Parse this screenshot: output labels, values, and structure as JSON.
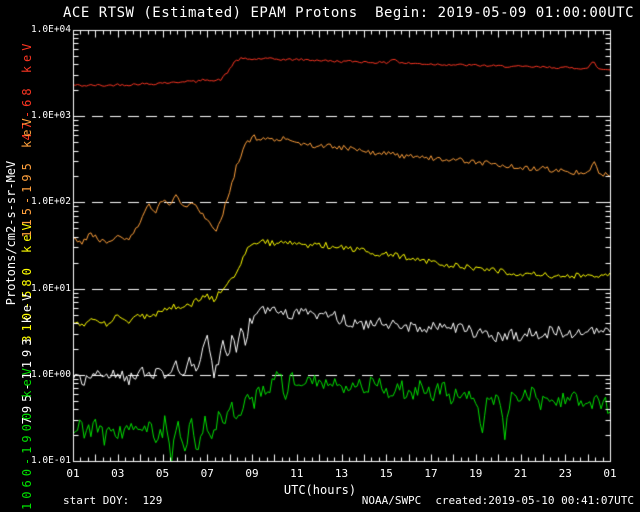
{
  "header": {
    "title": "ACE RTSW (Estimated) EPAM Protons",
    "begin_label": "Begin: 2019-05-09 01:00:00UTC"
  },
  "footer": {
    "start_doy": "start DOY:  129",
    "agency": "NOAA/SWPC",
    "created": "created:2019-05-10 00:41:07UTC"
  },
  "chart_data": {
    "type": "line",
    "title": "ACE RTSW (Estimated) EPAM Protons",
    "xlabel": "UTC(hours)",
    "ylabel": "Protons/cm2-s-sr-MeV",
    "background": "#000000",
    "axis_color": "#ffffff",
    "grid_style": "dashed-white",
    "y_scale": "log",
    "y_range": [
      0.1,
      10000
    ],
    "y_tick_values": [
      10000,
      1000,
      100,
      10,
      1,
      0.1
    ],
    "y_tick_labels": [
      "1.0E+04",
      "1.0E+03",
      "1.0E+02",
      "1.0E+01",
      "1.0E+00",
      "1.0E-01"
    ],
    "gridline_values": [
      1000,
      100,
      10,
      1
    ],
    "x_range_hours": [
      1,
      25
    ],
    "x_tick_hours": [
      1,
      3,
      5,
      7,
      9,
      11,
      13,
      15,
      17,
      19,
      21,
      23,
      25
    ],
    "x_tick_labels": [
      "01",
      "03",
      "05",
      "07",
      "09",
      "11",
      "13",
      "15",
      "17",
      "19",
      "21",
      "23",
      "01"
    ],
    "x_minor_tick_minutes": 20,
    "legend_position": "left-rotated",
    "sample_step_minutes": 6,
    "series": [
      {
        "name": "47-68 keV",
        "color": "#fb3522",
        "noise_log": 0.013,
        "anchors": [
          [
            1,
            2300
          ],
          [
            1.5,
            2260
          ],
          [
            2,
            2290
          ],
          [
            2.5,
            2260
          ],
          [
            3,
            2330
          ],
          [
            3.5,
            2310
          ],
          [
            4,
            2380
          ],
          [
            4.5,
            2360
          ],
          [
            5,
            2450
          ],
          [
            5.5,
            2440
          ],
          [
            6,
            2560
          ],
          [
            6.5,
            2510
          ],
          [
            7,
            2700
          ],
          [
            7.3,
            2560
          ],
          [
            7.6,
            2660
          ],
          [
            7.9,
            3200
          ],
          [
            8.2,
            4250
          ],
          [
            8.5,
            4650
          ],
          [
            9,
            4560
          ],
          [
            9.5,
            4660
          ],
          [
            10,
            4600
          ],
          [
            10.5,
            4520
          ],
          [
            11,
            4560
          ],
          [
            11.5,
            4490
          ],
          [
            12,
            4450
          ],
          [
            12.5,
            4360
          ],
          [
            13,
            4310
          ],
          [
            13.5,
            4330
          ],
          [
            14,
            4260
          ],
          [
            14.5,
            4210
          ],
          [
            15,
            4160
          ],
          [
            15.35,
            4680
          ],
          [
            15.6,
            4160
          ],
          [
            16,
            4110
          ],
          [
            16.5,
            4060
          ],
          [
            17,
            4020
          ],
          [
            17.5,
            3990
          ],
          [
            18,
            3950
          ],
          [
            18.5,
            3920
          ],
          [
            19,
            3890
          ],
          [
            19.5,
            3850
          ],
          [
            20,
            3810
          ],
          [
            20.5,
            3780
          ],
          [
            21,
            3750
          ],
          [
            21.5,
            3730
          ],
          [
            22,
            3700
          ],
          [
            22.5,
            3680
          ],
          [
            23,
            3650
          ],
          [
            23.5,
            3620
          ],
          [
            24,
            3600
          ],
          [
            24.25,
            4320
          ],
          [
            24.5,
            3520
          ],
          [
            25,
            3460
          ]
        ]
      },
      {
        "name": "115-195 keV",
        "color": "#ffa03c",
        "noise_log": 0.03,
        "anchors": [
          [
            1,
            40
          ],
          [
            1.4,
            34
          ],
          [
            1.8,
            44
          ],
          [
            2.2,
            36
          ],
          [
            2.6,
            33
          ],
          [
            3,
            40
          ],
          [
            3.4,
            36
          ],
          [
            3.8,
            48
          ],
          [
            4.1,
            70
          ],
          [
            4.4,
            96
          ],
          [
            4.7,
            76
          ],
          [
            5,
            106
          ],
          [
            5.3,
            88
          ],
          [
            5.6,
            116
          ],
          [
            6,
            86
          ],
          [
            6.4,
            100
          ],
          [
            6.8,
            72
          ],
          [
            7.1,
            60
          ],
          [
            7.4,
            46
          ],
          [
            7.7,
            76
          ],
          [
            8,
            130
          ],
          [
            8.3,
            260
          ],
          [
            8.6,
            420
          ],
          [
            8.9,
            532
          ],
          [
            9.1,
            570
          ],
          [
            9.4,
            520
          ],
          [
            9.7,
            556
          ],
          [
            10,
            512
          ],
          [
            10.4,
            546
          ],
          [
            10.8,
            500
          ],
          [
            11.2,
            482
          ],
          [
            11.6,
            466
          ],
          [
            12,
            442
          ],
          [
            12.4,
            456
          ],
          [
            12.8,
            422
          ],
          [
            13.2,
            432
          ],
          [
            13.6,
            402
          ],
          [
            14,
            392
          ],
          [
            14.5,
            372
          ],
          [
            15,
            376
          ],
          [
            15.5,
            352
          ],
          [
            16,
            342
          ],
          [
            16.5,
            346
          ],
          [
            17,
            326
          ],
          [
            17.5,
            312
          ],
          [
            18,
            316
          ],
          [
            18.5,
            302
          ],
          [
            19,
            292
          ],
          [
            19.5,
            286
          ],
          [
            20,
            272
          ],
          [
            20.5,
            262
          ],
          [
            21,
            252
          ],
          [
            21.5,
            246
          ],
          [
            22,
            249
          ],
          [
            22.5,
            236
          ],
          [
            23,
            229
          ],
          [
            23.5,
            223
          ],
          [
            24,
            216
          ],
          [
            24.25,
            296
          ],
          [
            24.5,
            219
          ],
          [
            25,
            206
          ]
        ]
      },
      {
        "name": "310-580 keV",
        "color": "#ffff00",
        "noise_log": 0.035,
        "anchors": [
          [
            1,
            4.2
          ],
          [
            1.5,
            3.7
          ],
          [
            2,
            4.5
          ],
          [
            2.5,
            3.9
          ],
          [
            3,
            4.7
          ],
          [
            3.5,
            4.1
          ],
          [
            4,
            5.0
          ],
          [
            4.5,
            4.5
          ],
          [
            5,
            5.6
          ],
          [
            5.5,
            6.3
          ],
          [
            6,
            5.9
          ],
          [
            6.5,
            7.2
          ],
          [
            7,
            8.3
          ],
          [
            7.3,
            7.4
          ],
          [
            7.6,
            9.5
          ],
          [
            7.9,
            11
          ],
          [
            8.2,
            13
          ],
          [
            8.5,
            20
          ],
          [
            8.8,
            28
          ],
          [
            9.1,
            33
          ],
          [
            9.5,
            35
          ],
          [
            10,
            33
          ],
          [
            10.5,
            36
          ],
          [
            11,
            34
          ],
          [
            11.5,
            32
          ],
          [
            12,
            33
          ],
          [
            12.5,
            31
          ],
          [
            13,
            31
          ],
          [
            13.5,
            29
          ],
          [
            14,
            28
          ],
          [
            14.5,
            26
          ],
          [
            15,
            25
          ],
          [
            15.5,
            24
          ],
          [
            16,
            23
          ],
          [
            16.5,
            21.5
          ],
          [
            17,
            20.5
          ],
          [
            17.5,
            19.5
          ],
          [
            18,
            18.5
          ],
          [
            18.5,
            18
          ],
          [
            19,
            17.5
          ],
          [
            19.5,
            16.5
          ],
          [
            20,
            16
          ],
          [
            20.5,
            15.5
          ],
          [
            21,
            15
          ],
          [
            21.5,
            14.8
          ],
          [
            22,
            14.5
          ],
          [
            22.5,
            14
          ],
          [
            23,
            14
          ],
          [
            23.5,
            14.2
          ],
          [
            24,
            13.8
          ],
          [
            24.5,
            13.5
          ],
          [
            25,
            14
          ]
        ]
      },
      {
        "name": "795-1193 keV",
        "color": "#ffffff",
        "noise_log": 0.07,
        "anchors": [
          [
            1,
            1.0
          ],
          [
            1.5,
            0.88
          ],
          [
            2,
            1.08
          ],
          [
            2.5,
            0.9
          ],
          [
            3,
            1.05
          ],
          [
            3.5,
            0.88
          ],
          [
            4,
            1.1
          ],
          [
            4.5,
            0.95
          ],
          [
            5,
            1.12
          ],
          [
            5.3,
            0.95
          ],
          [
            5.6,
            1.25
          ],
          [
            5.9,
            1.0
          ],
          [
            6.2,
            1.45
          ],
          [
            6.5,
            1.1
          ],
          [
            6.8,
            2.0
          ],
          [
            7.0,
            2.6
          ],
          [
            7.15,
            1.6
          ],
          [
            7.3,
            1.0
          ],
          [
            7.5,
            1.5
          ],
          [
            7.7,
            2.3
          ],
          [
            7.9,
            1.7
          ],
          [
            8.1,
            2.6
          ],
          [
            8.3,
            2.0
          ],
          [
            8.5,
            3.1
          ],
          [
            8.7,
            2.4
          ],
          [
            8.9,
            3.9
          ],
          [
            9.1,
            4.8
          ],
          [
            9.4,
            5.5
          ],
          [
            9.7,
            5.9
          ],
          [
            10,
            5.4
          ],
          [
            10.3,
            5.8
          ],
          [
            10.7,
            5.1
          ],
          [
            11,
            5.4
          ],
          [
            11.5,
            4.9
          ],
          [
            12,
            4.6
          ],
          [
            12.5,
            4.9
          ],
          [
            13,
            4.3
          ],
          [
            13.5,
            4.1
          ],
          [
            14,
            3.9
          ],
          [
            14.5,
            4.1
          ],
          [
            15,
            3.7
          ],
          [
            15.5,
            3.8
          ],
          [
            16,
            3.6
          ],
          [
            16.5,
            3.7
          ],
          [
            17,
            3.5
          ],
          [
            17.5,
            3.4
          ],
          [
            18,
            3.5
          ],
          [
            18.5,
            3.3
          ],
          [
            19,
            3.1
          ],
          [
            19.5,
            2.9
          ],
          [
            20,
            2.7
          ],
          [
            20.5,
            3.0
          ],
          [
            21,
            2.8
          ],
          [
            21.5,
            3.2
          ],
          [
            22,
            2.9
          ],
          [
            22.5,
            3.3
          ],
          [
            23,
            3.0
          ],
          [
            23.5,
            3.2
          ],
          [
            24,
            2.9
          ],
          [
            24.5,
            3.4
          ],
          [
            25,
            3.4
          ]
        ]
      },
      {
        "name": "1060-1900 keV",
        "color": "#00e000",
        "noise_log": 0.1,
        "anchors": [
          [
            1,
            0.22
          ],
          [
            1.3,
            0.3
          ],
          [
            1.6,
            0.2
          ],
          [
            2,
            0.26
          ],
          [
            2.4,
            0.18
          ],
          [
            2.8,
            0.24
          ],
          [
            3.2,
            0.2
          ],
          [
            3.6,
            0.26
          ],
          [
            4,
            0.22
          ],
          [
            4.4,
            0.28
          ],
          [
            4.8,
            0.16
          ],
          [
            5.1,
            0.28
          ],
          [
            5.4,
            0.11
          ],
          [
            5.7,
            0.26
          ],
          [
            6,
            0.13
          ],
          [
            6.3,
            0.3
          ],
          [
            6.6,
            0.12
          ],
          [
            6.9,
            0.28
          ],
          [
            7.2,
            0.2
          ],
          [
            7.5,
            0.33
          ],
          [
            7.8,
            0.26
          ],
          [
            8.1,
            0.42
          ],
          [
            8.4,
            0.34
          ],
          [
            8.7,
            0.52
          ],
          [
            9,
            0.44
          ],
          [
            9.3,
            0.65
          ],
          [
            9.6,
            0.58
          ],
          [
            9.9,
            0.9
          ],
          [
            10.2,
            1.05
          ],
          [
            10.5,
            0.55
          ],
          [
            10.8,
            0.95
          ],
          [
            11.1,
            0.72
          ],
          [
            11.4,
            1.0
          ],
          [
            12,
            0.8
          ],
          [
            12.5,
            0.95
          ],
          [
            13,
            0.74
          ],
          [
            13.5,
            0.85
          ],
          [
            14,
            0.7
          ],
          [
            14.5,
            0.8
          ],
          [
            15,
            0.64
          ],
          [
            15.5,
            0.75
          ],
          [
            16,
            0.6
          ],
          [
            16.5,
            0.72
          ],
          [
            17,
            0.58
          ],
          [
            17.5,
            0.68
          ],
          [
            18,
            0.55
          ],
          [
            18.5,
            0.65
          ],
          [
            19,
            0.5
          ],
          [
            19.3,
            0.25
          ],
          [
            19.6,
            0.6
          ],
          [
            20,
            0.45
          ],
          [
            20.3,
            0.22
          ],
          [
            20.6,
            0.55
          ],
          [
            21,
            0.5
          ],
          [
            21.5,
            0.6
          ],
          [
            22,
            0.45
          ],
          [
            22.5,
            0.55
          ],
          [
            23,
            0.5
          ],
          [
            23.5,
            0.58
          ],
          [
            24,
            0.42
          ],
          [
            24.5,
            0.5
          ],
          [
            25,
            0.42
          ]
        ]
      }
    ]
  }
}
